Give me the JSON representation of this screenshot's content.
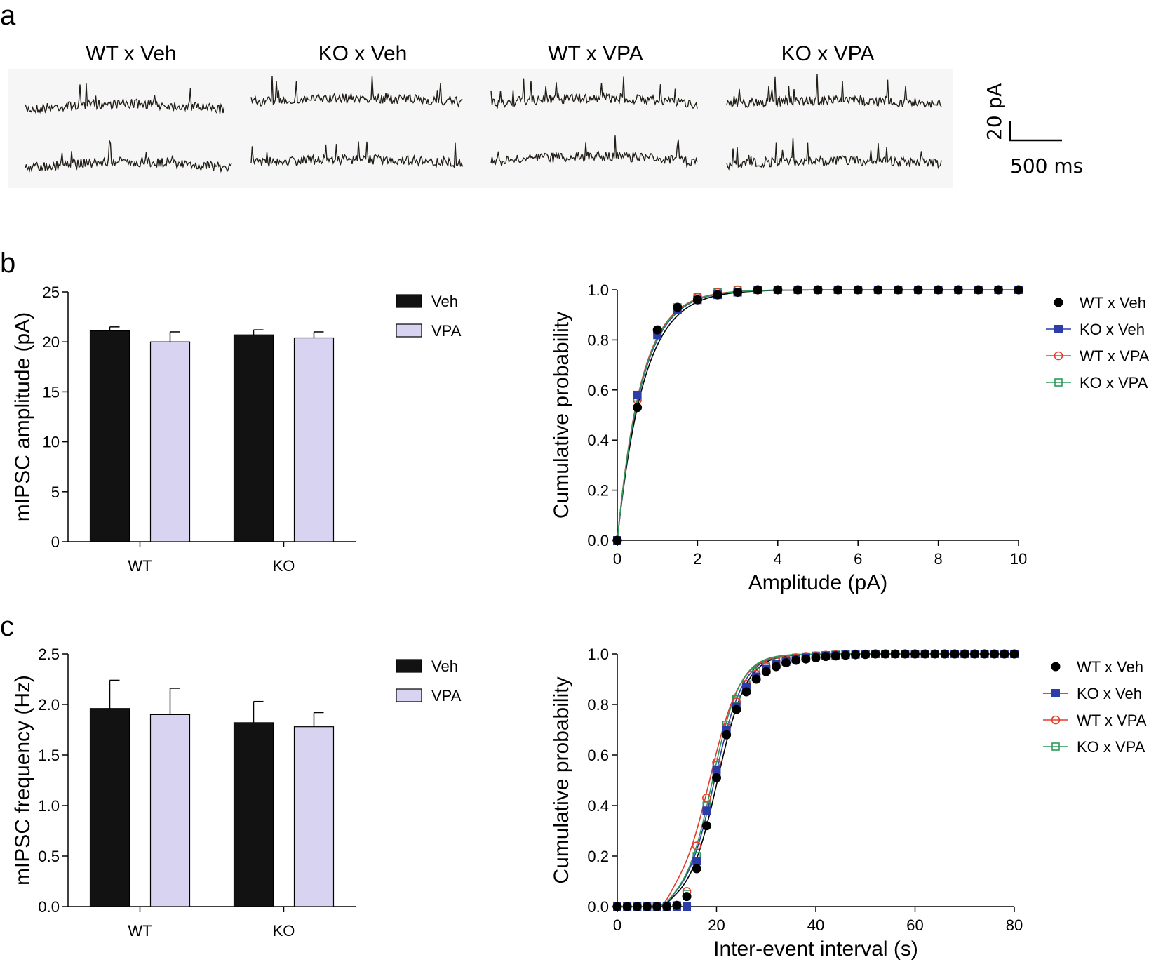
{
  "panels": {
    "a": "a",
    "b": "b",
    "c": "c"
  },
  "traces": {
    "conditions": [
      "WT x Veh",
      "KO x Veh",
      "WT x VPA",
      "KO x VPA"
    ],
    "scale_y": "20 pA",
    "scale_x": "500 ms"
  },
  "colors": {
    "veh_bar": "#121212",
    "vpa_bar": "#d7d3f0",
    "wt_veh": "#000000",
    "ko_veh": "#2c3ca8",
    "wt_vpa": "#e53b2c",
    "ko_vpa": "#2e9a5a"
  },
  "chart_data": [
    {
      "id": "b-bar",
      "type": "bar",
      "categories": [
        "WT",
        "KO"
      ],
      "series": [
        {
          "name": "Veh",
          "values": [
            21.1,
            20.7
          ],
          "errors": [
            0.4,
            0.5
          ]
        },
        {
          "name": "VPA",
          "values": [
            20.0,
            20.4
          ],
          "errors": [
            1.0,
            0.6
          ]
        }
      ],
      "ylabel": "mIPSC amplitude (pA)",
      "ylim": [
        0,
        25
      ],
      "yticks": [
        "0",
        "5",
        "10",
        "15",
        "20",
        "25"
      ],
      "legend": [
        "Veh",
        "VPA"
      ]
    },
    {
      "id": "b-cdf",
      "type": "line",
      "xlabel": "Amplitude (pA)",
      "ylabel": "Cumulative probability",
      "xlim": [
        0,
        10
      ],
      "ylim": [
        0,
        1
      ],
      "xticks": [
        "0",
        "2",
        "4",
        "6",
        "8",
        "10"
      ],
      "yticks": [
        "0.0",
        "0.2",
        "0.4",
        "0.6",
        "0.8",
        "1.0"
      ],
      "x": [
        0,
        0.5,
        1,
        1.5,
        2,
        2.5,
        3,
        3.5,
        4,
        4.5,
        5,
        5.5,
        6,
        6.5,
        7,
        7.5,
        8,
        8.5,
        9,
        9.5,
        10
      ],
      "series": [
        {
          "name": "WT x Veh",
          "values": [
            0,
            0.53,
            0.84,
            0.93,
            0.96,
            0.98,
            0.99,
            1,
            1,
            1,
            1,
            1,
            1,
            1,
            1,
            1,
            1,
            1,
            1,
            1,
            1
          ]
        },
        {
          "name": "KO x Veh",
          "values": [
            0,
            0.58,
            0.82,
            0.92,
            0.96,
            0.98,
            0.99,
            1,
            1,
            1,
            1,
            1,
            1,
            1,
            1,
            1,
            1,
            1,
            1,
            1,
            1
          ]
        },
        {
          "name": "WT x VPA",
          "values": [
            0,
            0.56,
            0.83,
            0.93,
            0.97,
            0.99,
            1,
            1,
            1,
            1,
            1,
            1,
            1,
            1,
            1,
            1,
            1,
            1,
            1,
            1,
            1
          ]
        },
        {
          "name": "KO x VPA",
          "values": [
            0,
            0.57,
            0.83,
            0.93,
            0.97,
            0.99,
            1,
            1,
            1,
            1,
            1,
            1,
            1,
            1,
            1,
            1,
            1,
            1,
            1,
            1,
            1
          ]
        }
      ]
    },
    {
      "id": "c-bar",
      "type": "bar",
      "categories": [
        "WT",
        "KO"
      ],
      "series": [
        {
          "name": "Veh",
          "values": [
            1.96,
            1.82
          ],
          "errors": [
            0.28,
            0.21
          ]
        },
        {
          "name": "VPA",
          "values": [
            1.9,
            1.78
          ],
          "errors": [
            0.26,
            0.14
          ]
        }
      ],
      "ylabel": "mIPSC frequency (Hz)",
      "ylim": [
        0,
        2.5
      ],
      "yticks": [
        "0.0",
        "0.5",
        "1.0",
        "1.5",
        "2.0",
        "2.5"
      ],
      "legend": [
        "Veh",
        "VPA"
      ]
    },
    {
      "id": "c-cdf",
      "type": "line",
      "xlabel": "Inter-event interval (s)",
      "ylabel": "Cumulative probability",
      "xlim": [
        0,
        80
      ],
      "ylim": [
        0,
        1
      ],
      "xticks": [
        "0",
        "20",
        "40",
        "60",
        "80"
      ],
      "yticks": [
        "0.0",
        "0.2",
        "0.4",
        "0.6",
        "0.8",
        "1.0"
      ],
      "x": [
        0,
        2,
        4,
        6,
        8,
        10,
        12,
        14,
        16,
        18,
        20,
        22,
        24,
        26,
        28,
        30,
        32,
        34,
        36,
        38,
        40,
        42,
        44,
        46,
        48,
        50,
        52,
        54,
        56,
        58,
        60,
        62,
        64,
        66,
        68,
        70,
        72,
        74,
        76,
        78,
        80
      ],
      "series": [
        {
          "name": "WT x Veh",
          "values": [
            0,
            0,
            0,
            0,
            0,
            0,
            0.005,
            0.04,
            0.15,
            0.32,
            0.51,
            0.68,
            0.78,
            0.85,
            0.9,
            0.93,
            0.95,
            0.965,
            0.975,
            0.98,
            0.985,
            0.99,
            0.992,
            0.995,
            0.997,
            0.998,
            1,
            1,
            1,
            1,
            1,
            1,
            1,
            1,
            1,
            1,
            1,
            1,
            1,
            1,
            1
          ]
        },
        {
          "name": "KO x Veh",
          "values": [
            0,
            0,
            0,
            0,
            0,
            0,
            0,
            0,
            0.18,
            0.38,
            0.54,
            0.7,
            0.79,
            0.87,
            0.91,
            0.94,
            0.96,
            0.97,
            0.98,
            0.985,
            0.99,
            0.993,
            0.995,
            0.997,
            0.998,
            1,
            1,
            1,
            1,
            1,
            1,
            1,
            1,
            1,
            1,
            1,
            1,
            1,
            1,
            1,
            1
          ]
        },
        {
          "name": "WT x VPA",
          "values": [
            0,
            0,
            0,
            0,
            0,
            0,
            0.005,
            0.06,
            0.24,
            0.43,
            0.57,
            0.71,
            0.81,
            0.88,
            0.92,
            0.95,
            0.97,
            0.98,
            0.985,
            0.99,
            0.993,
            0.995,
            0.997,
            0.998,
            1,
            1,
            1,
            1,
            1,
            1,
            1,
            1,
            1,
            1,
            1,
            1,
            1,
            1,
            1,
            1,
            1
          ]
        },
        {
          "name": "KO x VPA",
          "values": [
            0,
            0,
            0,
            0,
            0,
            0,
            0.005,
            0.05,
            0.2,
            0.4,
            0.56,
            0.72,
            0.82,
            0.88,
            0.93,
            0.95,
            0.97,
            0.98,
            0.985,
            0.99,
            0.993,
            0.995,
            0.997,
            0.998,
            1,
            1,
            1,
            1,
            1,
            1,
            1,
            1,
            1,
            1,
            1,
            1,
            1,
            1,
            1,
            1,
            1
          ]
        }
      ]
    }
  ]
}
